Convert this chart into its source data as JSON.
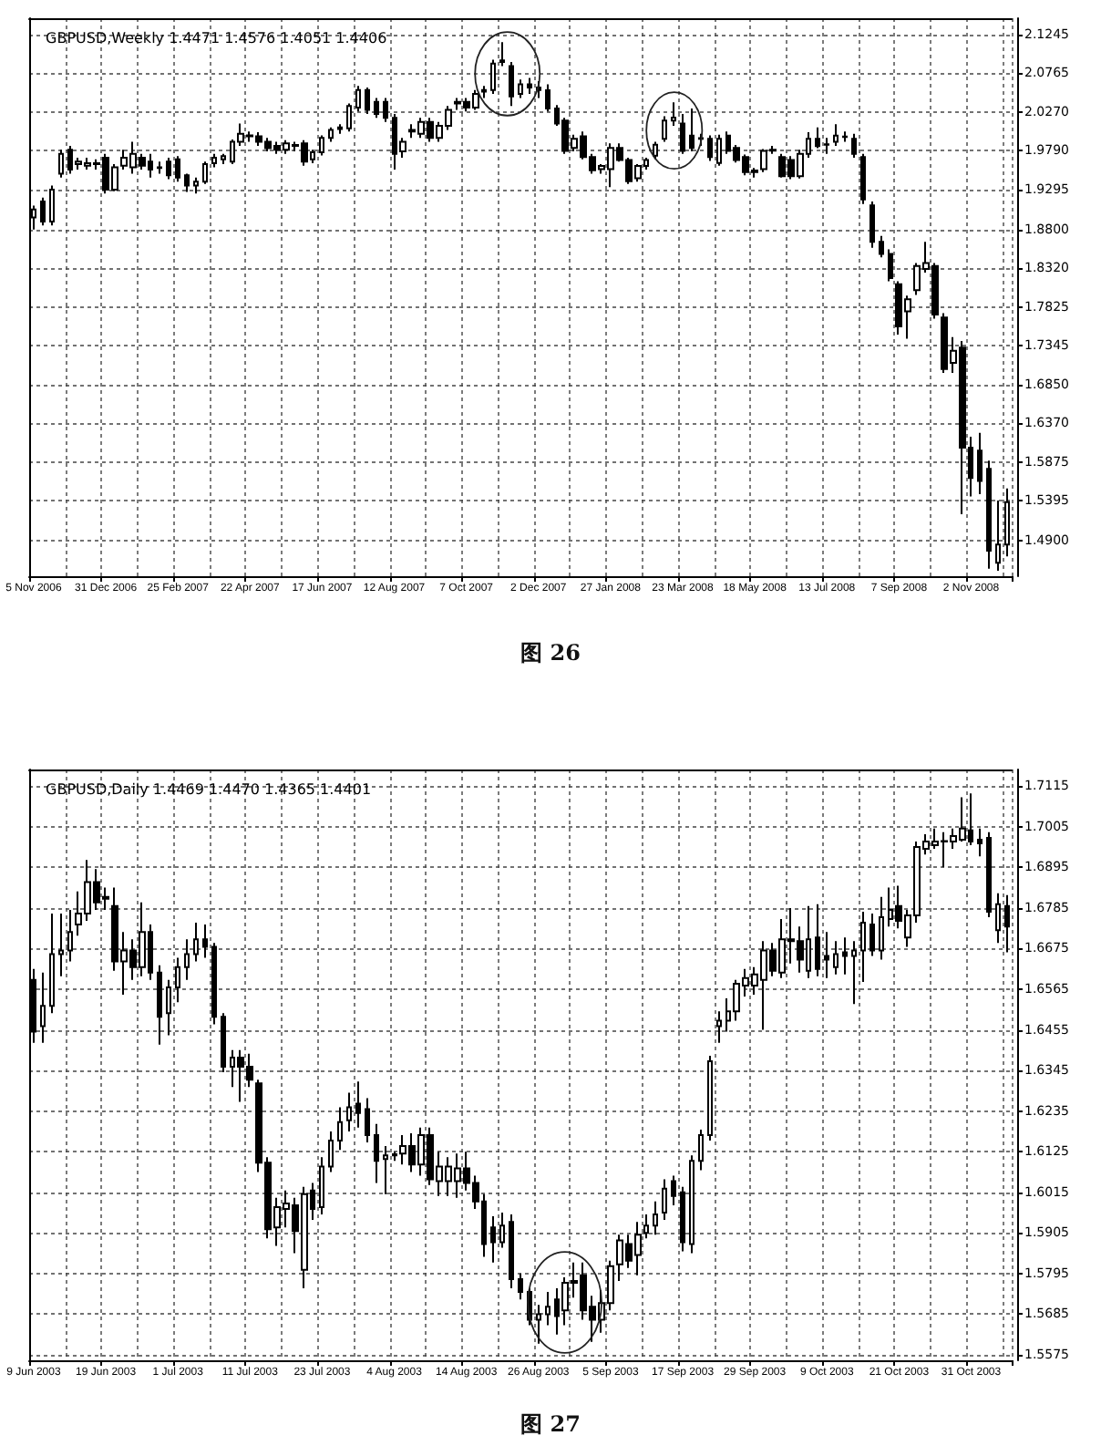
{
  "chart_data": [
    {
      "type": "candlestick",
      "title": "GBPUSD,Weekly 1.4471 1.4576 1.4051 1.4406",
      "annotations": [
        "图 26"
      ],
      "color": "#000000",
      "grid": true,
      "ylim": [
        1.445,
        2.145
      ],
      "yticks": [
        {
          "value": 1.49,
          "label": "1.4900"
        },
        1.5395,
        1.5875,
        {
          "value": 1.637,
          "label": "1.6370"
        },
        {
          "value": 1.685,
          "label": "1.6850"
        },
        1.7345,
        1.7825,
        {
          "value": 1.832,
          "label": "1.8320"
        },
        {
          "value": 1.88,
          "label": "1.8800"
        },
        1.9295,
        {
          "value": 1.979,
          "label": "1.9790"
        },
        {
          "value": 2.027,
          "label": "2.0270"
        },
        2.0765,
        2.1245
      ],
      "categories": [
        "5 Nov 2006",
        null,
        null,
        null,
        null,
        null,
        null,
        null,
        "31 Dec 2006",
        null,
        null,
        null,
        null,
        null,
        null,
        null,
        "25 Feb 2007",
        null,
        null,
        null,
        null,
        null,
        null,
        null,
        "22 Apr 2007",
        null,
        null,
        null,
        null,
        null,
        null,
        null,
        "17 Jun 2007",
        null,
        null,
        null,
        null,
        null,
        null,
        null,
        "12 Aug 2007",
        null,
        null,
        null,
        null,
        null,
        null,
        null,
        "7 Oct 2007",
        null,
        null,
        null,
        null,
        null,
        null,
        null,
        "2 Dec 2007",
        null,
        null,
        null,
        null,
        null,
        null,
        null,
        "27 Jan 2008",
        null,
        null,
        null,
        null,
        null,
        null,
        null,
        "23 Mar 2008",
        null,
        null,
        null,
        null,
        null,
        null,
        null,
        "18 May 2008",
        null,
        null,
        null,
        null,
        null,
        null,
        null,
        "13 Jul 2008",
        null,
        null,
        null,
        null,
        null,
        null,
        null,
        "7 Sep 2008",
        null,
        null,
        null,
        null,
        null,
        null,
        null,
        "2 Nov 2008",
        null,
        null,
        null,
        null
      ],
      "ohlc": [
        [
          1.895,
          1.91,
          1.88,
          1.905
        ],
        [
          1.915,
          1.92,
          1.885,
          1.89
        ],
        [
          1.89,
          1.935,
          1.885,
          1.93
        ],
        [
          1.95,
          1.98,
          1.945,
          1.975
        ],
        [
          1.98,
          1.985,
          1.95,
          1.955
        ],
        [
          1.962,
          1.97,
          1.955,
          1.965
        ],
        [
          1.96,
          1.97,
          1.955,
          1.963
        ],
        [
          1.962,
          1.968,
          1.955,
          1.963
        ],
        [
          1.97,
          1.975,
          1.925,
          1.93
        ],
        [
          1.93,
          1.962,
          1.928,
          1.958
        ],
        [
          1.96,
          1.98,
          1.955,
          1.97
        ],
        [
          1.958,
          1.99,
          1.95,
          1.975
        ],
        [
          1.97,
          1.975,
          1.955,
          1.96
        ],
        [
          1.965,
          1.975,
          1.945,
          1.955
        ],
        [
          1.957,
          1.965,
          1.95,
          1.958
        ],
        [
          1.965,
          1.97,
          1.943,
          1.948
        ],
        [
          1.968,
          1.972,
          1.94,
          1.945
        ],
        [
          1.948,
          1.95,
          1.927,
          1.935
        ],
        [
          1.935,
          1.945,
          1.925,
          1.94
        ],
        [
          1.94,
          1.965,
          1.937,
          1.962
        ],
        [
          1.963,
          1.975,
          1.958,
          1.97
        ],
        [
          1.968,
          1.975,
          1.962,
          1.972
        ],
        [
          1.965,
          1.993,
          1.962,
          1.99
        ],
        [
          1.99,
          2.013,
          1.985,
          2.0
        ],
        [
          1.997,
          2.003,
          1.99,
          1.998
        ],
        [
          1.997,
          2.002,
          1.985,
          1.99
        ],
        [
          1.99,
          1.995,
          1.978,
          1.982
        ],
        [
          1.985,
          1.99,
          1.975,
          1.98
        ],
        [
          1.98,
          1.992,
          1.975,
          1.988
        ],
        [
          1.985,
          1.99,
          1.978,
          1.986
        ],
        [
          1.988,
          1.992,
          1.96,
          1.965
        ],
        [
          1.968,
          1.98,
          1.963,
          1.977
        ],
        [
          1.977,
          1.998,
          1.973,
          1.995
        ],
        [
          1.995,
          2.008,
          1.99,
          2.005
        ],
        [
          2.006,
          2.012,
          2.0,
          2.008
        ],
        [
          2.007,
          2.038,
          2.003,
          2.035
        ],
        [
          2.033,
          2.06,
          2.028,
          2.055
        ],
        [
          2.055,
          2.058,
          2.025,
          2.03
        ],
        [
          2.04,
          2.045,
          2.02,
          2.025
        ],
        [
          2.04,
          2.045,
          2.015,
          2.02
        ],
        [
          2.02,
          2.025,
          1.955,
          1.975
        ],
        [
          1.978,
          1.995,
          1.97,
          1.99
        ],
        [
          2.003,
          2.012,
          1.995,
          2.005
        ],
        [
          2.0,
          2.02,
          1.995,
          2.015
        ],
        [
          2.015,
          2.02,
          1.99,
          1.995
        ],
        [
          1.995,
          2.015,
          1.99,
          2.01
        ],
        [
          2.01,
          2.035,
          2.005,
          2.03
        ],
        [
          2.038,
          2.045,
          2.03,
          2.04
        ],
        [
          2.04,
          2.045,
          2.028,
          2.033
        ],
        [
          2.033,
          2.055,
          2.03,
          2.05
        ],
        [
          2.053,
          2.06,
          2.045,
          2.055
        ],
        [
          2.055,
          2.093,
          2.05,
          2.088
        ],
        [
          2.09,
          2.115,
          2.085,
          2.092
        ],
        [
          2.085,
          2.09,
          2.035,
          2.047
        ],
        [
          2.05,
          2.068,
          2.045,
          2.062
        ],
        [
          2.062,
          2.07,
          2.05,
          2.058
        ],
        [
          2.058,
          2.066,
          2.045,
          2.055
        ],
        [
          2.0546,
          2.062,
          2.028,
          2.0318
        ],
        [
          2.0318,
          2.036,
          2.01,
          2.0128
        ],
        [
          2.0166,
          2.02,
          1.975,
          1.9786
        ],
        [
          1.9824,
          1.999,
          1.978,
          1.9938
        ],
        [
          1.997,
          2.003,
          1.968,
          1.971
        ],
        [
          1.971,
          1.975,
          1.95,
          1.9543
        ],
        [
          1.9558,
          1.962,
          1.95,
          1.9596
        ],
        [
          1.9558,
          1.988,
          1.933,
          1.9824
        ],
        [
          1.9824,
          1.988,
          1.965,
          1.9672
        ],
        [
          1.9672,
          1.97,
          1.937,
          1.9406
        ],
        [
          1.9444,
          1.962,
          1.94,
          1.9596
        ],
        [
          1.9596,
          1.97,
          1.955,
          1.9672
        ],
        [
          1.9725,
          1.99,
          1.968,
          1.9862
        ],
        [
          1.9938,
          2.022,
          1.99,
          2.0166
        ],
        [
          2.0166,
          2.0394,
          2.01,
          2.0204
        ],
        [
          2.0128,
          2.025,
          1.975,
          1.9786
        ],
        [
          1.9976,
          2.0318,
          1.978,
          1.9824
        ],
        [
          1.9938,
          2.0,
          1.985,
          1.9945
        ],
        [
          1.9938,
          1.998,
          1.966,
          1.971
        ],
        [
          1.9634,
          1.999,
          1.96,
          1.9938
        ],
        [
          1.9976,
          2.003,
          1.975,
          1.9786
        ],
        [
          1.9824,
          1.986,
          1.964,
          1.9672
        ],
        [
          1.971,
          1.974,
          1.948,
          1.952
        ],
        [
          1.952,
          1.957,
          1.945,
          1.954
        ],
        [
          1.9558,
          1.981,
          1.952,
          1.9786
        ],
        [
          1.979,
          1.985,
          1.975,
          1.98
        ],
        [
          1.971,
          1.975,
          1.945,
          1.9467
        ],
        [
          1.9672,
          1.972,
          1.943,
          1.9467
        ],
        [
          1.9467,
          1.98,
          1.944,
          1.9748
        ],
        [
          1.9748,
          2.002,
          1.97,
          1.9938
        ],
        [
          1.9938,
          2.008,
          1.982,
          1.9847
        ],
        [
          1.9862,
          1.995,
          1.975,
          1.987
        ],
        [
          1.99,
          2.012,
          1.985,
          1.9976
        ],
        [
          1.996,
          2.003,
          1.99,
          1.9966
        ],
        [
          1.9938,
          2.0,
          1.97,
          1.9748
        ],
        [
          1.971,
          1.975,
          1.912,
          1.9178
        ],
        [
          1.9102,
          1.915,
          1.857,
          1.8646
        ],
        [
          1.8646,
          1.872,
          1.845,
          1.8494
        ],
        [
          1.8494,
          1.855,
          1.815,
          1.819
        ],
        [
          1.8114,
          1.815,
          1.748,
          1.7583
        ],
        [
          1.7772,
          1.797,
          1.7431,
          1.7924
        ],
        [
          1.8038,
          1.838,
          1.798,
          1.8342
        ],
        [
          1.8304,
          1.8646,
          1.826,
          1.838
        ],
        [
          1.8342,
          1.838,
          1.768,
          1.7734
        ],
        [
          1.7696,
          1.775,
          1.7,
          1.705
        ],
        [
          1.7127,
          1.745,
          1.7,
          1.7279
        ],
        [
          1.7317,
          1.74,
          1.5227,
          1.6063
        ],
        [
          1.6063,
          1.62,
          1.545,
          1.5683
        ],
        [
          1.6025,
          1.625,
          1.548,
          1.5645
        ],
        [
          1.5797,
          1.59,
          1.4543,
          1.4771
        ],
        [
          1.4619,
          1.54,
          1.452,
          1.4847
        ],
        [
          1.4847,
          1.555,
          1.47,
          1.5379
        ]
      ]
    },
    {
      "type": "candlestick",
      "title": "GBPUSD,Daily 1.4469 1.4470 1.4365 1.4401",
      "annotations": [
        "图 27"
      ],
      "color": "#000000",
      "grid": true,
      "ylim": [
        1.556,
        1.716
      ],
      "yticks": [
        1.5575,
        1.5685,
        1.5795,
        1.5905,
        1.6015,
        1.6125,
        1.6235,
        1.6345,
        1.6455,
        1.6565,
        1.6675,
        1.6785,
        1.6895,
        1.7005,
        1.7115
      ],
      "categories": [
        "9 Jun 2003",
        null,
        null,
        null,
        null,
        null,
        null,
        null,
        "19 Jun 2003",
        null,
        null,
        null,
        null,
        null,
        null,
        null,
        "1 Jul 2003",
        null,
        null,
        null,
        null,
        null,
        null,
        null,
        "11 Jul 2003",
        null,
        null,
        null,
        null,
        null,
        null,
        null,
        "23 Jul 2003",
        null,
        null,
        null,
        null,
        null,
        null,
        null,
        "4 Aug 2003",
        null,
        null,
        null,
        null,
        null,
        null,
        null,
        "14 Aug 2003",
        null,
        null,
        null,
        null,
        null,
        null,
        null,
        "26 Aug 2003",
        null,
        null,
        null,
        null,
        null,
        null,
        null,
        "5 Sep 2003",
        null,
        null,
        null,
        null,
        null,
        null,
        null,
        "17 Sep 2003",
        null,
        null,
        null,
        null,
        null,
        null,
        null,
        "29 Sep 2003",
        null,
        null,
        null,
        null,
        null,
        null,
        null,
        "9 Oct 2003",
        null,
        null,
        null,
        null,
        null,
        null,
        null,
        "21 Oct 2003",
        null,
        null,
        null,
        null,
        null,
        null,
        null,
        "31 Oct 2003",
        null,
        null,
        null,
        null
      ],
      "ohlc": [
        [
          1.659,
          1.662,
          1.642,
          1.645
        ],
        [
          1.6465,
          1.661,
          1.642,
          1.652
        ],
        [
          1.652,
          1.677,
          1.65,
          1.666
        ],
        [
          1.666,
          1.677,
          1.66,
          1.667
        ],
        [
          1.667,
          1.678,
          1.664,
          1.672
        ],
        [
          1.674,
          1.683,
          1.671,
          1.677
        ],
        [
          1.677,
          1.6915,
          1.675,
          1.6855
        ],
        [
          1.6855,
          1.689,
          1.678,
          1.68
        ],
        [
          1.681,
          1.684,
          1.678,
          1.6815
        ],
        [
          1.679,
          1.684,
          1.6615,
          1.664
        ],
        [
          1.664,
          1.672,
          1.655,
          1.667
        ],
        [
          1.667,
          1.67,
          1.659,
          1.6625
        ],
        [
          1.6625,
          1.68,
          1.66,
          1.672
        ],
        [
          1.672,
          1.674,
          1.659,
          1.661
        ],
        [
          1.661,
          1.663,
          1.6415,
          1.649
        ],
        [
          1.65,
          1.659,
          1.644,
          1.657
        ],
        [
          1.657,
          1.665,
          1.653,
          1.6625
        ],
        [
          1.6625,
          1.67,
          1.659,
          1.666
        ],
        [
          1.666,
          1.6745,
          1.664,
          1.67
        ],
        [
          1.67,
          1.674,
          1.665,
          1.668
        ],
        [
          1.668,
          1.669,
          1.647,
          1.649
        ],
        [
          1.649,
          1.65,
          1.634,
          1.6355
        ],
        [
          1.6355,
          1.64,
          1.63,
          1.638
        ],
        [
          1.638,
          1.64,
          1.626,
          1.6355
        ],
        [
          1.6355,
          1.639,
          1.63,
          1.632
        ],
        [
          1.631,
          1.632,
          1.607,
          1.6095
        ],
        [
          1.6095,
          1.611,
          1.589,
          1.5915
        ],
        [
          1.592,
          1.6,
          1.587,
          1.5975
        ],
        [
          1.597,
          1.602,
          1.592,
          1.5985
        ],
        [
          1.598,
          1.6,
          1.585,
          1.591
        ],
        [
          1.5805,
          1.603,
          1.5755,
          1.601
        ],
        [
          1.602,
          1.604,
          1.594,
          1.597
        ],
        [
          1.5975,
          1.611,
          1.5955,
          1.6085
        ],
        [
          1.6085,
          1.618,
          1.607,
          1.6155
        ],
        [
          1.6155,
          1.6245,
          1.613,
          1.6205
        ],
        [
          1.621,
          1.6285,
          1.618,
          1.6245
        ],
        [
          1.6255,
          1.6315,
          1.619,
          1.623
        ],
        [
          1.624,
          1.627,
          1.615,
          1.617
        ],
        [
          1.617,
          1.62,
          1.604,
          1.61
        ],
        [
          1.6105,
          1.614,
          1.601,
          1.6115
        ],
        [
          1.6115,
          1.6125,
          1.61,
          1.6118
        ],
        [
          1.612,
          1.617,
          1.609,
          1.614
        ],
        [
          1.614,
          1.6175,
          1.607,
          1.609
        ],
        [
          1.609,
          1.619,
          1.606,
          1.617
        ],
        [
          1.617,
          1.619,
          1.6035,
          1.605
        ],
        [
          1.6045,
          1.6125,
          1.6005,
          1.6085
        ],
        [
          1.6045,
          1.611,
          1.6005,
          1.6085
        ],
        [
          1.6045,
          1.612,
          1.6,
          1.608
        ],
        [
          1.608,
          1.6125,
          1.602,
          1.604
        ],
        [
          1.604,
          1.606,
          1.597,
          1.599
        ],
        [
          1.599,
          1.601,
          1.584,
          1.5875
        ],
        [
          1.592,
          1.595,
          1.5825,
          1.588
        ],
        [
          1.588,
          1.596,
          1.5865,
          1.5925
        ],
        [
          1.5935,
          1.5955,
          1.5755,
          1.578
        ],
        [
          1.578,
          1.5795,
          1.5725,
          1.5745
        ],
        [
          1.5745,
          1.5755,
          1.5655,
          1.567
        ],
        [
          1.567,
          1.571,
          1.5605,
          1.5685
        ],
        [
          1.5685,
          1.5745,
          1.5655,
          1.5705
        ],
        [
          1.5725,
          1.5755,
          1.563,
          1.568
        ],
        [
          1.5695,
          1.5785,
          1.5655,
          1.577
        ],
        [
          1.577,
          1.5825,
          1.573,
          1.5775
        ],
        [
          1.579,
          1.5825,
          1.567,
          1.5695
        ],
        [
          1.5705,
          1.5735,
          1.561,
          1.567
        ],
        [
          1.567,
          1.575,
          1.5635,
          1.5715
        ],
        [
          1.5715,
          1.583,
          1.5695,
          1.5815
        ],
        [
          1.582,
          1.59,
          1.5775,
          1.5885
        ],
        [
          1.5875,
          1.59,
          1.581,
          1.583
        ],
        [
          1.5845,
          1.5935,
          1.579,
          1.59
        ],
        [
          1.5905,
          1.5955,
          1.589,
          1.5925
        ],
        [
          1.5925,
          1.599,
          1.59,
          1.5955
        ],
        [
          1.596,
          1.605,
          1.594,
          1.6025
        ],
        [
          1.6045,
          1.606,
          1.598,
          1.6005
        ],
        [
          1.6015,
          1.603,
          1.5855,
          1.588
        ],
        [
          1.5875,
          1.6115,
          1.585,
          1.61
        ],
        [
          1.61,
          1.6185,
          1.6075,
          1.617
        ],
        [
          1.617,
          1.6385,
          1.6155,
          1.637
        ],
        [
          1.6465,
          1.6505,
          1.642,
          1.648
        ],
        [
          1.648,
          1.654,
          1.645,
          1.6505
        ],
        [
          1.6505,
          1.659,
          1.648,
          1.658
        ],
        [
          1.6575,
          1.662,
          1.6545,
          1.6595
        ],
        [
          1.6575,
          1.6625,
          1.655,
          1.6605
        ],
        [
          1.659,
          1.6695,
          1.6455,
          1.667
        ],
        [
          1.667,
          1.669,
          1.66,
          1.6615
        ],
        [
          1.661,
          1.6755,
          1.6595,
          1.67
        ],
        [
          1.6695,
          1.6785,
          1.6635,
          1.67
        ],
        [
          1.6695,
          1.6735,
          1.661,
          1.6645
        ],
        [
          1.6615,
          1.679,
          1.6595,
          1.67
        ],
        [
          1.6705,
          1.6795,
          1.66,
          1.662
        ],
        [
          1.6655,
          1.672,
          1.6595,
          1.6645
        ],
        [
          1.6625,
          1.6695,
          1.6605,
          1.666
        ],
        [
          1.6665,
          1.6705,
          1.6605,
          1.6655
        ],
        [
          1.6655,
          1.6695,
          1.6525,
          1.667
        ],
        [
          1.667,
          1.6775,
          1.6585,
          1.6745
        ],
        [
          1.674,
          1.677,
          1.6655,
          1.667
        ],
        [
          1.667,
          1.6815,
          1.6645,
          1.676
        ],
        [
          1.6755,
          1.684,
          1.6735,
          1.678
        ],
        [
          1.679,
          1.6845,
          1.673,
          1.675
        ],
        [
          1.6705,
          1.678,
          1.668,
          1.6765
        ],
        [
          1.6765,
          1.6965,
          1.6745,
          1.695
        ],
        [
          1.6945,
          1.6985,
          1.693,
          1.6965
        ],
        [
          1.6955,
          1.7,
          1.6945,
          1.6965
        ],
        [
          1.6965,
          1.699,
          1.6895,
          1.6966
        ],
        [
          1.6965,
          1.7,
          1.6945,
          1.698
        ],
        [
          1.697,
          1.7085,
          1.6965,
          1.7
        ],
        [
          1.6995,
          1.7095,
          1.6955,
          1.6965
        ],
        [
          1.697,
          1.7,
          1.6925,
          1.696
        ],
        [
          1.6975,
          1.699,
          1.676,
          1.6775
        ],
        [
          1.6725,
          1.6825,
          1.669,
          1.6795
        ],
        [
          1.679,
          1.682,
          1.6665,
          1.6735
        ]
      ]
    }
  ]
}
